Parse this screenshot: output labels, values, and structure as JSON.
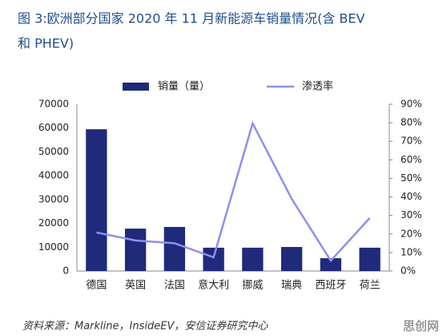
{
  "chart_data": {
    "type": "bar-line",
    "title": [
      "图 3:欧洲部分国家 2020 年 11 月新能源车销量情况(含 BEV",
      "和 PHEV)"
    ],
    "categories": [
      "德国",
      "英国",
      "法国",
      "意大利",
      "挪威",
      "瑞典",
      "西班牙",
      "荷兰"
    ],
    "series": [
      {
        "name": "销量（量）",
        "color": "#1f2a7a",
        "type": "bar",
        "values": [
          59500,
          17800,
          18500,
          9800,
          9800,
          10100,
          5400,
          9800
        ]
      },
      {
        "name": "渗透率",
        "color": "#8f8ff0",
        "type": "line",
        "axis": "y2",
        "values": [
          20.8,
          16.5,
          15,
          7.4,
          79.7,
          39,
          5.6,
          28.6
        ]
      }
    ],
    "ylim": [
      0,
      70000
    ],
    "yticks": [
      0,
      10000,
      20000,
      30000,
      40000,
      50000,
      60000,
      70000
    ],
    "y2lim": [
      0,
      90
    ],
    "y2ticks": [
      {
        "value": 0,
        "label": "0%"
      },
      {
        "value": 10,
        "label": "10%"
      },
      {
        "value": 20,
        "label": "20%"
      },
      {
        "value": 30,
        "label": "30%"
      },
      {
        "value": 40,
        "label": "40%"
      },
      {
        "value": 50,
        "label": "50%"
      },
      {
        "value": 60,
        "label": "60%"
      },
      {
        "value": 70,
        "label": "70%"
      },
      {
        "value": 80,
        "label": "80%"
      },
      {
        "value": 90,
        "label": "90%"
      }
    ],
    "legend": "top",
    "source": "资料来源：Markline，InsideEV，安信证券研究中心",
    "watermark": "思创网"
  }
}
